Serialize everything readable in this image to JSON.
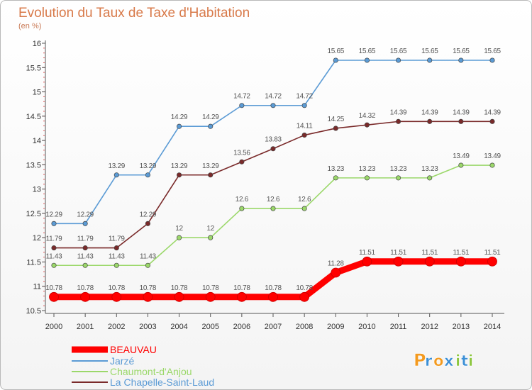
{
  "chart_data": {
    "type": "line",
    "title": "Evolution du Taux de Taxe d'Habitation",
    "subtitle": "(en %)",
    "x": [
      "2000",
      "2001",
      "2002",
      "2003",
      "2004",
      "2005",
      "2006",
      "2007",
      "2008",
      "2009",
      "2010",
      "2011",
      "2012",
      "2013",
      "2014"
    ],
    "ylim": [
      10.5,
      16
    ],
    "yticks": [
      10.5,
      11,
      11.5,
      12,
      12.5,
      13,
      13.5,
      14,
      14.5,
      15,
      15.5,
      16
    ],
    "grid": false,
    "legend_position": "bottom-left",
    "series": [
      {
        "name": "BEAUVAU",
        "color": "#ff0000",
        "values": [
          10.78,
          10.78,
          10.78,
          10.78,
          10.78,
          10.78,
          10.78,
          10.78,
          10.78,
          11.28,
          11.51,
          11.51,
          11.51,
          11.51,
          11.51
        ],
        "labels": [
          "10.78",
          "10.78",
          "10.78",
          "10.78",
          "10.78",
          "10.78",
          "10.78",
          "10.78",
          "10.78",
          "11.28",
          "11.51",
          "11.51",
          "11.51",
          "11.51",
          "11.51"
        ]
      },
      {
        "name": "Jarzé",
        "color": "#5b9bd5",
        "values": [
          12.29,
          12.29,
          13.29,
          13.29,
          14.29,
          14.29,
          14.72,
          14.72,
          14.72,
          15.65,
          15.65,
          15.65,
          15.65,
          15.65,
          15.65
        ],
        "labels": [
          "12.29",
          "12.29",
          "13.29",
          "13.29",
          "14.29",
          "14.29",
          "14.72",
          "14.72",
          "14.72",
          "15.65",
          "15.65",
          "15.65",
          "15.65",
          "15.65",
          "15.65"
        ]
      },
      {
        "name": "Chaumont-d'Anjou",
        "color": "#9bd86a",
        "values": [
          11.43,
          11.43,
          11.43,
          11.43,
          12,
          12,
          12.6,
          12.6,
          12.6,
          13.23,
          13.23,
          13.23,
          13.23,
          13.49,
          13.49
        ],
        "labels": [
          "11.43",
          "11.43",
          "11.43",
          "11.43",
          "12",
          "12",
          "12.6",
          "12.6",
          "12.6",
          "13.23",
          "13.23",
          "13.23",
          "13.23",
          "13.49",
          "13.49"
        ]
      },
      {
        "name": "La Chapelle-Saint-Laud",
        "color": "#7a2a2a",
        "values": [
          11.79,
          11.79,
          11.79,
          12.29,
          13.29,
          13.29,
          13.56,
          13.83,
          14.11,
          14.25,
          14.32,
          14.39,
          14.39,
          14.39,
          14.39
        ],
        "labels": [
          "11.79",
          "11.79",
          "11.79",
          "12.29",
          "13.29",
          "13.29",
          "13.56",
          "13.83",
          "14.11",
          "14.25",
          "14.32",
          "14.39",
          "14.39",
          "14.39",
          "14.39"
        ]
      }
    ]
  },
  "brand": {
    "letters": [
      "P",
      "r",
      "o",
      "x",
      "i",
      "t",
      "i"
    ],
    "colors": [
      "#f39a1f",
      "#3b8fd6",
      "#f39a1f",
      "#3b8fd6",
      "#8cc63f",
      "#3b8fd6",
      "#8cc63f"
    ]
  }
}
